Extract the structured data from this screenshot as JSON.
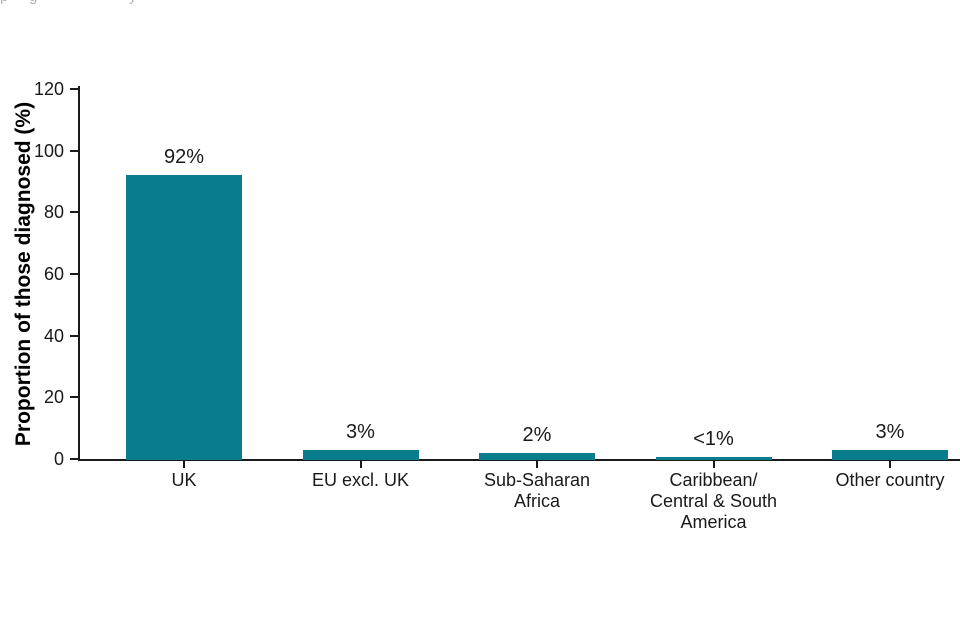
{
  "page": {
    "background": "#ffffff",
    "clipped_top_text_fragments": [
      {
        "glyph": "p",
        "x": 0
      },
      {
        "glyph": "g",
        "x": 29
      },
      {
        "glyph": "y",
        "x": 129
      }
    ]
  },
  "chart_data": {
    "type": "bar",
    "title": "",
    "xlabel": "",
    "ylabel": "Proportion of those diagnosed (%)",
    "ylim": [
      0,
      120
    ],
    "yticks": [
      0,
      20,
      40,
      60,
      80,
      100,
      120
    ],
    "grid": false,
    "legend": null,
    "bar_color": "#0a7d8c",
    "axis_color": "#1a1a1a",
    "categories": [
      "UK",
      "EU excl. UK",
      "Sub-Saharan\nAfrica",
      "Caribbean/\nCentral & South\nAmerica",
      "Other country"
    ],
    "values": [
      92,
      3,
      2,
      0.5,
      3
    ],
    "value_labels": [
      "92%",
      "3%",
      "2%",
      "<1%",
      "3%"
    ]
  }
}
